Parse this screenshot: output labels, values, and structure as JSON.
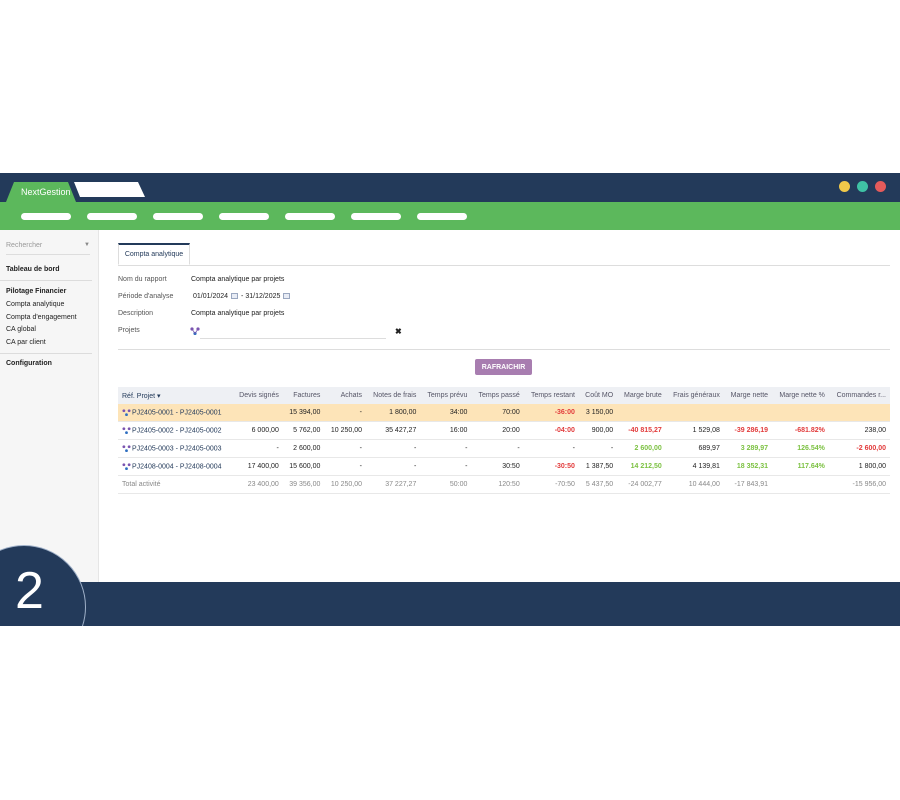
{
  "app": {
    "tab_label": "NextGestion"
  },
  "colors": {
    "navy": "#233a5a",
    "green": "#5cb85c",
    "accent_button": "#a87db0",
    "highlight_row": "#fde4b8",
    "negative": "#e23b3b",
    "positive": "#7cc142",
    "dot_yellow": "#f0c94a",
    "dot_teal": "#3fc2a5",
    "dot_red": "#e55b5b"
  },
  "sidebar": {
    "search_placeholder": "Rechercher",
    "dashboard": "Tableau de bord",
    "section_title": "Pilotage Financier",
    "items": [
      "Compta analytique",
      "Compta d'engagement",
      "CA global",
      "CA par client"
    ],
    "configuration": "Configuration"
  },
  "content": {
    "tab": "Compta analytique",
    "form": {
      "report_name_label": "Nom du rapport",
      "report_name_value": "Compta analytique par projets",
      "period_label": "Période d'analyse",
      "period_start": "01/01/2024",
      "period_sep": "-",
      "period_end": "31/12/2025",
      "description_label": "Description",
      "description_value": "Compta analytique par projets",
      "projects_label": "Projets"
    },
    "refresh_button": "RAFRAICHIR"
  },
  "table": {
    "headers": [
      "Réf. Projet ▾",
      "Devis signés",
      "Factures",
      "Achats",
      "Notes de frais",
      "Temps prévu",
      "Temps passé",
      "Temps restant",
      "Coût MO",
      "Marge brute",
      "Frais généraux",
      "Marge nette",
      "Marge nette %",
      "Commandes r..."
    ],
    "rows": [
      [
        "PJ2405-0001 - PJ2405-0001",
        "",
        "15 394,00",
        "-",
        "1 800,00",
        "34:00",
        "70:00",
        "-36:00",
        "3 150,00",
        "",
        "",
        "",
        "",
        ""
      ],
      [
        "PJ2405-0002 - PJ2405-0002",
        "6 000,00",
        "5 762,00",
        "10 250,00",
        "35 427,27",
        "16:00",
        "20:00",
        "-04:00",
        "900,00",
        "-40 815,27",
        "1 529,08",
        "-39 286,19",
        "-681.82%",
        "238,00"
      ],
      [
        "PJ2405-0003 - PJ2405-0003",
        "-",
        "2 600,00",
        "-",
        "-",
        "-",
        "-",
        "-",
        "-",
        "2 600,00",
        "689,97",
        "3 289,97",
        "126.54%",
        "-2 600,00"
      ],
      [
        "PJ2408-0004 - PJ2408-0004",
        "17 400,00",
        "15 600,00",
        "-",
        "-",
        "-",
        "30:50",
        "-30:50",
        "1 387,50",
        "14 212,50",
        "4 139,81",
        "18 352,31",
        "117.64%",
        "1 800,00"
      ]
    ],
    "total": [
      "Total activité",
      "23 400,00",
      "39 356,00",
      "10 250,00",
      "37 227,27",
      "50:00",
      "120:50",
      "-70:50",
      "5 437,50",
      "-24 002,77",
      "10 444,00",
      "-17 843,91",
      "",
      "-15 956,00"
    ]
  },
  "step_number": "2"
}
